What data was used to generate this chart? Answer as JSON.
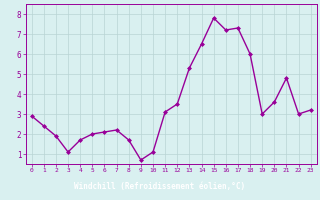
{
  "x": [
    0,
    1,
    2,
    3,
    4,
    5,
    6,
    7,
    8,
    9,
    10,
    11,
    12,
    13,
    14,
    15,
    16,
    17,
    18,
    19,
    20,
    21,
    22,
    23
  ],
  "y": [
    2.9,
    2.4,
    1.9,
    1.1,
    1.7,
    2.0,
    2.1,
    2.2,
    1.7,
    0.7,
    1.1,
    3.1,
    3.5,
    5.3,
    6.5,
    7.8,
    7.2,
    7.3,
    6.0,
    3.0,
    3.6,
    4.8,
    3.0,
    3.2
  ],
  "line_color": "#990099",
  "marker": "D",
  "marker_size": 2,
  "linewidth": 1.0,
  "bg_color": "#d9f0f0",
  "grid_color": "#b8d4d4",
  "xlabel": "Windchill (Refroidissement éolien,°C)",
  "xlabel_color": "#ffffff",
  "xlabel_bg": "#880088",
  "ylabel_ticks": [
    1,
    2,
    3,
    4,
    5,
    6,
    7,
    8
  ],
  "xticks": [
    0,
    1,
    2,
    3,
    4,
    5,
    6,
    7,
    8,
    9,
    10,
    11,
    12,
    13,
    14,
    15,
    16,
    17,
    18,
    19,
    20,
    21,
    22,
    23
  ],
  "xlim": [
    -0.5,
    23.5
  ],
  "ylim": [
    0.5,
    8.5
  ],
  "tick_color": "#990099",
  "tick_label_color": "#990099",
  "spine_color": "#990099"
}
